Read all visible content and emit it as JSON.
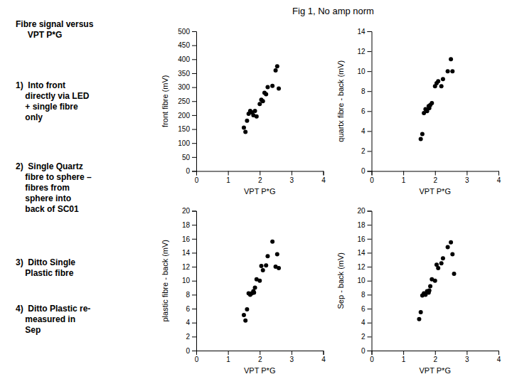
{
  "title": "Fig 1, No amp norm",
  "annotations": [
    "Fibre signal versus\n     VPT P*G",
    "1)  Into front\n    directly via LED\n    + single fibre\n    only",
    "2)  Single Quartz\n    fibre to sphere –\n    fibres from\n    sphere into\n    back of SC01",
    "3)  Ditto Single\n    Plastic fibre",
    "4)  Ditto Plastic re-\n    measured in\n    Sep"
  ],
  "chart_data": [
    {
      "type": "scatter",
      "xlabel": "VPT P*G",
      "ylabel": "front fibre (mV)",
      "xlim": [
        0,
        4
      ],
      "ylim": [
        0,
        500
      ],
      "xticks": [
        0,
        1,
        2,
        3,
        4
      ],
      "yticks": [
        0,
        50,
        100,
        150,
        200,
        250,
        300,
        350,
        400,
        450,
        500
      ],
      "x": [
        1.5,
        1.55,
        1.6,
        1.65,
        1.7,
        1.75,
        1.8,
        1.85,
        1.9,
        2.0,
        2.05,
        2.1,
        2.15,
        2.2,
        2.25,
        2.4,
        2.5,
        2.55,
        2.6
      ],
      "values": [
        155,
        140,
        180,
        205,
        215,
        210,
        200,
        215,
        195,
        240,
        255,
        250,
        280,
        275,
        300,
        305,
        360,
        375,
        295
      ],
      "color": "black",
      "marker": "o"
    },
    {
      "type": "scatter",
      "xlabel": "VPT P*G",
      "ylabel": "quartx fibre - back (mV)",
      "xlim": [
        0,
        4
      ],
      "ylim": [
        0,
        14
      ],
      "xticks": [
        0,
        1,
        2,
        3,
        4
      ],
      "yticks": [
        0,
        2,
        4,
        6,
        8,
        10,
        12,
        14
      ],
      "x": [
        1.55,
        1.6,
        1.65,
        1.7,
        1.75,
        1.8,
        1.82,
        1.85,
        1.9,
        2.0,
        2.05,
        2.1,
        2.2,
        2.25,
        2.4,
        2.5,
        2.55
      ],
      "values": [
        3.2,
        3.7,
        5.8,
        6.2,
        6.0,
        6.5,
        6.3,
        6.6,
        6.8,
        8.5,
        8.8,
        9.0,
        8.5,
        9.2,
        10.0,
        11.2,
        10.0
      ],
      "color": "black",
      "marker": "o"
    },
    {
      "type": "scatter",
      "xlabel": "VPT P*G",
      "ylabel": "plastic fibre - back (mV)",
      "xlim": [
        0,
        4
      ],
      "ylim": [
        0,
        20
      ],
      "xticks": [
        0,
        1,
        2,
        3,
        4
      ],
      "yticks": [
        0,
        2,
        4,
        6,
        8,
        10,
        12,
        14,
        16,
        18,
        20
      ],
      "x": [
        1.5,
        1.55,
        1.6,
        1.65,
        1.7,
        1.75,
        1.8,
        1.82,
        1.85,
        1.9,
        2.0,
        2.05,
        2.1,
        2.2,
        2.25,
        2.4,
        2.5,
        2.55,
        2.6
      ],
      "values": [
        5.1,
        4.3,
        5.9,
        8.2,
        8.0,
        8.2,
        8.5,
        8.3,
        9.0,
        10.2,
        10.0,
        12.1,
        11.5,
        12.2,
        13.5,
        15.6,
        12.0,
        13.8,
        11.8
      ],
      "color": "black",
      "marker": "o"
    },
    {
      "type": "scatter",
      "xlabel": "VPT P*G",
      "ylabel": "Sep - back (mV)",
      "xlim": [
        0,
        4
      ],
      "ylim": [
        0,
        20
      ],
      "xticks": [
        0,
        1,
        2,
        3,
        4
      ],
      "yticks": [
        0,
        2,
        4,
        6,
        8,
        10,
        12,
        14,
        16,
        18,
        20
      ],
      "x": [
        1.5,
        1.55,
        1.6,
        1.65,
        1.7,
        1.75,
        1.8,
        1.82,
        1.85,
        1.9,
        2.0,
        2.05,
        2.1,
        2.2,
        2.25,
        2.4,
        2.5,
        2.55,
        2.6
      ],
      "values": [
        4.5,
        5.5,
        7.9,
        8.2,
        8.0,
        8.5,
        8.3,
        8.6,
        9.2,
        10.2,
        10.0,
        12.3,
        11.8,
        12.5,
        13.2,
        14.8,
        15.5,
        13.8,
        11.0
      ],
      "color": "black",
      "marker": "o"
    }
  ]
}
